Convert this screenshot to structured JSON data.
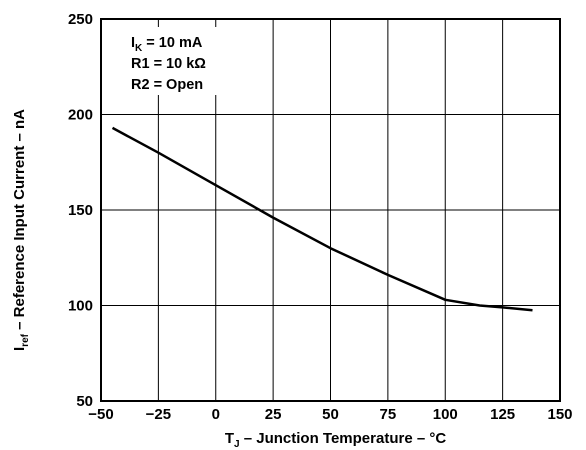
{
  "chart_data": {
    "type": "line",
    "x_axis": {
      "label_main": "T",
      "label_sub": "J",
      "label_rest": " – Junction Temperature – °C",
      "range": [
        -50,
        150
      ],
      "ticks": [
        -50,
        -25,
        0,
        25,
        50,
        75,
        100,
        125,
        150
      ],
      "tick_labels": [
        "−50",
        "−25",
        "0",
        "25",
        "50",
        "75",
        "100",
        "125",
        "150"
      ]
    },
    "y_axis": {
      "label_main": "I",
      "label_sub": "ref",
      "label_rest": " – Reference Input Current – nA",
      "range": [
        50,
        250
      ],
      "ticks": [
        50,
        100,
        150,
        200,
        250
      ],
      "tick_labels": [
        "50",
        "100",
        "150",
        "200",
        "250"
      ]
    },
    "grid": true,
    "series": [
      {
        "color": "#000000",
        "x": [
          -45,
          -25,
          0,
          25,
          50,
          75,
          100,
          115,
          125,
          138
        ],
        "y": [
          193,
          180,
          163,
          146,
          130,
          116,
          103,
          100,
          99,
          97.5
        ]
      }
    ],
    "annotations": [
      {
        "main": "I",
        "sub": "K",
        "rest": " = 10 mA"
      },
      {
        "main": "R1 = 10 kΩ",
        "sub": "",
        "rest": ""
      },
      {
        "main": "R2 = Open",
        "sub": "",
        "rest": ""
      }
    ]
  }
}
